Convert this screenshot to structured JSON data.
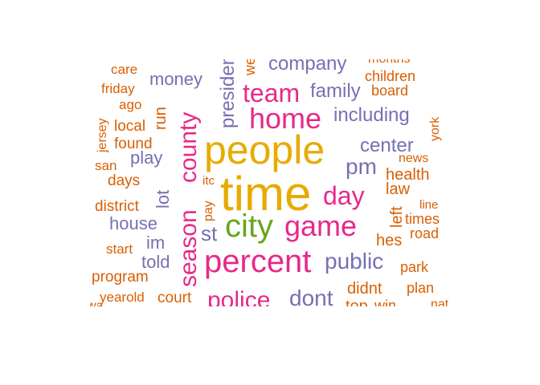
{
  "palette": {
    "orange": "#d95f02",
    "purple": "#7570b3",
    "magenta": "#e7298a",
    "gold": "#e6ab02",
    "green": "#66a61e"
  },
  "words": [
    {
      "text": "time",
      "color": "gold"
    },
    {
      "text": "people",
      "color": "gold"
    },
    {
      "text": "percent",
      "color": "magenta"
    },
    {
      "text": "city",
      "color": "green"
    },
    {
      "text": "game",
      "color": "magenta"
    },
    {
      "text": "home",
      "color": "magenta"
    },
    {
      "text": "day",
      "color": "magenta"
    },
    {
      "text": "team",
      "color": "magenta"
    },
    {
      "text": "season",
      "color": "magenta"
    },
    {
      "text": "county",
      "color": "magenta"
    },
    {
      "text": "police",
      "color": "magenta"
    },
    {
      "text": "dont",
      "color": "purple"
    },
    {
      "text": "public",
      "color": "purple"
    },
    {
      "text": "company",
      "color": "purple"
    },
    {
      "text": "family",
      "color": "purple"
    },
    {
      "text": "including",
      "color": "purple"
    },
    {
      "text": "center",
      "color": "purple"
    },
    {
      "text": "pm",
      "color": "purple"
    },
    {
      "text": "money",
      "color": "purple"
    },
    {
      "text": "house",
      "color": "purple"
    },
    {
      "text": "play",
      "color": "purple"
    },
    {
      "text": "told",
      "color": "purple"
    },
    {
      "text": "im",
      "color": "purple"
    },
    {
      "text": "st",
      "color": "purple"
    },
    {
      "text": "lot",
      "color": "purple"
    },
    {
      "text": "president",
      "color": "purple"
    },
    {
      "text": "health",
      "color": "orange"
    },
    {
      "text": "law",
      "color": "orange"
    },
    {
      "text": "hes",
      "color": "orange"
    },
    {
      "text": "didnt",
      "color": "orange"
    },
    {
      "text": "top",
      "color": "orange"
    },
    {
      "text": "win",
      "color": "orange"
    },
    {
      "text": "park",
      "color": "orange"
    },
    {
      "text": "plan",
      "color": "orange"
    },
    {
      "text": "road",
      "color": "orange"
    },
    {
      "text": "times",
      "color": "orange"
    },
    {
      "text": "line",
      "color": "orange"
    },
    {
      "text": "left",
      "color": "orange"
    },
    {
      "text": "news",
      "color": "orange"
    },
    {
      "text": "york",
      "color": "orange"
    },
    {
      "text": "board",
      "color": "orange"
    },
    {
      "text": "children",
      "color": "orange"
    },
    {
      "text": "months",
      "color": "orange"
    },
    {
      "text": "care",
      "color": "orange"
    },
    {
      "text": "friday",
      "color": "orange"
    },
    {
      "text": "ago",
      "color": "orange"
    },
    {
      "text": "local",
      "color": "orange"
    },
    {
      "text": "found",
      "color": "orange"
    },
    {
      "text": "jersey",
      "color": "orange"
    },
    {
      "text": "san",
      "color": "orange"
    },
    {
      "text": "days",
      "color": "orange"
    },
    {
      "text": "district",
      "color": "orange"
    },
    {
      "text": "start",
      "color": "orange"
    },
    {
      "text": "program",
      "color": "orange"
    },
    {
      "text": "yearold",
      "color": "orange"
    },
    {
      "text": "court",
      "color": "orange"
    },
    {
      "text": "run",
      "color": "orange"
    },
    {
      "text": "pay",
      "color": "orange"
    },
    {
      "text": "itc",
      "color": "orange"
    },
    {
      "text": "week",
      "color": "orange"
    },
    {
      "text": "wa",
      "color": "orange"
    },
    {
      "text": "nat",
      "color": "orange"
    }
  ]
}
